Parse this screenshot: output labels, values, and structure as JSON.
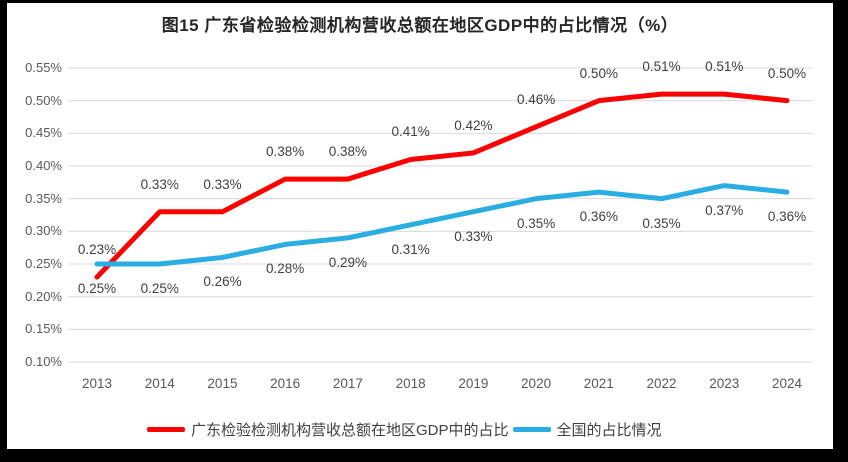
{
  "frame": {
    "background": "#000000",
    "canvas_background": "#ffffff"
  },
  "chart_data": {
    "type": "line",
    "title": "图15  广东省检验检测机构营收总额在地区GDP中的占比情况（%）",
    "categories": [
      "2013",
      "2014",
      "2015",
      "2016",
      "2017",
      "2018",
      "2019",
      "2020",
      "2021",
      "2022",
      "2023",
      "2024"
    ],
    "series": [
      {
        "name": "广东检验检测机构营收总额在地区GDP中的占比",
        "color": "#fe0000",
        "values": [
          0.23,
          0.33,
          0.33,
          0.38,
          0.38,
          0.41,
          0.42,
          0.46,
          0.5,
          0.51,
          0.51,
          0.5
        ],
        "point_labels": [
          "0.23%",
          "0.33%",
          "0.33%",
          "0.38%",
          "0.38%",
          "0.41%",
          "0.42%",
          "0.46%",
          "0.50%",
          "0.51%",
          "0.51%",
          "0.50%"
        ],
        "label_position": "above"
      },
      {
        "name": "全国的占比情况",
        "color": "#2aade3",
        "values": [
          0.25,
          0.25,
          0.26,
          0.28,
          0.29,
          0.31,
          0.33,
          0.35,
          0.36,
          0.35,
          0.37,
          0.36
        ],
        "point_labels": [
          "0.25%",
          "0.25%",
          "0.26%",
          "0.28%",
          "0.29%",
          "0.31%",
          "0.33%",
          "0.35%",
          "0.36%",
          "0.35%",
          "0.37%",
          "0.36%"
        ],
        "label_position": "below"
      }
    ],
    "yticks": [
      {
        "value": 0.55,
        "label": "0.55%"
      },
      {
        "value": 0.5,
        "label": "0.50%"
      },
      {
        "value": 0.45,
        "label": "0.45%"
      },
      {
        "value": 0.4,
        "label": "0.40%"
      },
      {
        "value": 0.35,
        "label": "0.35%"
      },
      {
        "value": 0.3,
        "label": "0.30%"
      },
      {
        "value": 0.25,
        "label": "0.25%"
      },
      {
        "value": 0.2,
        "label": "0.20%"
      },
      {
        "value": 0.15,
        "label": "0.15%"
      },
      {
        "value": 0.1,
        "label": "0.10%"
      }
    ],
    "ylim": [
      0.1,
      0.55
    ],
    "grid": true,
    "gridline_color": "#d9d9d9",
    "legend_position": "bottom",
    "text_colors": {
      "title": "#262626",
      "ticks": "#595959",
      "data_labels": "#404040"
    }
  }
}
